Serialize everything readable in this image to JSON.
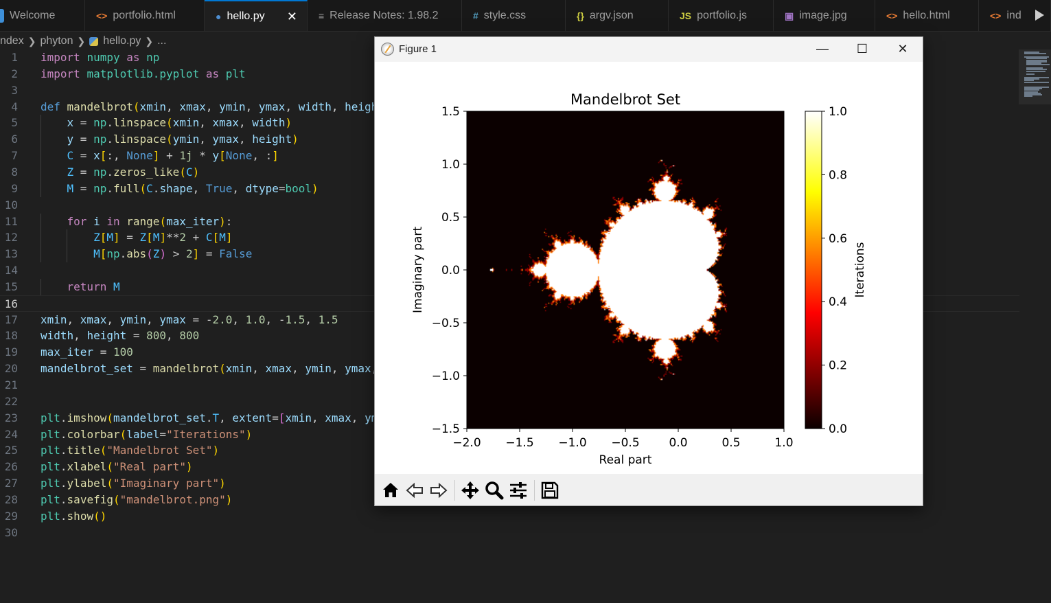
{
  "tabs": [
    {
      "label": "Welcome",
      "icon": "vscode-icon",
      "icon_color": "#3e8fd8",
      "active": false
    },
    {
      "label": "portfolio.html",
      "icon": "html-icon",
      "icon_color": "#e37933",
      "active": false
    },
    {
      "label": "hello.py",
      "icon": "python-icon",
      "icon_color": "#4e8ed1",
      "active": true
    },
    {
      "label": "Release Notes: 1.98.2",
      "icon": "document-icon",
      "icon_color": "#9d9d9d",
      "active": false
    },
    {
      "label": "style.css",
      "icon": "css-icon",
      "icon_color": "#519aba",
      "active": false
    },
    {
      "label": "argv.json",
      "icon": "json-icon",
      "icon_color": "#cbcb41",
      "active": false
    },
    {
      "label": "portfolio.js",
      "icon": "js-icon",
      "icon_color": "#cbcb41",
      "active": false
    },
    {
      "label": "image.jpg",
      "icon": "image-icon",
      "icon_color": "#a074c4",
      "active": false
    },
    {
      "label": "hello.html",
      "icon": "html-icon",
      "icon_color": "#e37933",
      "active": false
    },
    {
      "label": "ind",
      "icon": "html-icon",
      "icon_color": "#e37933",
      "active": false
    }
  ],
  "tab_glyphs": {
    "html": "<>",
    "py": "●",
    "doc": "≡",
    "css": "#",
    "json": "{}",
    "js": "JS",
    "img": "▣"
  },
  "breadcrumb": {
    "root": "ndex",
    "folder": "phyton",
    "file": "hello.py",
    "ellipsis": "..."
  },
  "editor": {
    "current_line": 16,
    "line_numbers": [
      "1",
      "2",
      "3",
      "4",
      "5",
      "6",
      "7",
      "8",
      "9",
      "10",
      "11",
      "12",
      "13",
      "14",
      "15",
      "16",
      "17",
      "18",
      "19",
      "20",
      "21",
      "22",
      "23",
      "24",
      "25",
      "26",
      "27",
      "28",
      "29",
      "30"
    ],
    "lines": [
      [
        [
          "k",
          "import"
        ],
        [
          "p",
          " "
        ],
        [
          "t",
          "numpy"
        ],
        [
          "p",
          " "
        ],
        [
          "k",
          "as"
        ],
        [
          "p",
          " "
        ],
        [
          "t",
          "np"
        ]
      ],
      [
        [
          "k",
          "import"
        ],
        [
          "p",
          " "
        ],
        [
          "t",
          "matplotlib.pyplot"
        ],
        [
          "p",
          " "
        ],
        [
          "k",
          "as"
        ],
        [
          "p",
          " "
        ],
        [
          "t",
          "plt"
        ]
      ],
      [],
      [
        [
          "d",
          "def"
        ],
        [
          "p",
          " "
        ],
        [
          "f",
          "mandelbrot"
        ],
        [
          "b1",
          "("
        ],
        [
          "v",
          "xmin"
        ],
        [
          "p",
          ", "
        ],
        [
          "v",
          "xmax"
        ],
        [
          "p",
          ", "
        ],
        [
          "v",
          "ymin"
        ],
        [
          "p",
          ", "
        ],
        [
          "v",
          "ymax"
        ],
        [
          "p",
          ", "
        ],
        [
          "v",
          "width"
        ],
        [
          "p",
          ", "
        ],
        [
          "v",
          "heigh"
        ]
      ],
      [
        [
          "p",
          "    "
        ],
        [
          "v",
          "x"
        ],
        [
          "p",
          " = "
        ],
        [
          "t",
          "np"
        ],
        [
          "p",
          "."
        ],
        [
          "f",
          "linspace"
        ],
        [
          "b1",
          "("
        ],
        [
          "v",
          "xmin"
        ],
        [
          "p",
          ", "
        ],
        [
          "v",
          "xmax"
        ],
        [
          "p",
          ", "
        ],
        [
          "v",
          "width"
        ],
        [
          "b1",
          ")"
        ]
      ],
      [
        [
          "p",
          "    "
        ],
        [
          "v",
          "y"
        ],
        [
          "p",
          " = "
        ],
        [
          "t",
          "np"
        ],
        [
          "p",
          "."
        ],
        [
          "f",
          "linspace"
        ],
        [
          "b1",
          "("
        ],
        [
          "v",
          "ymin"
        ],
        [
          "p",
          ", "
        ],
        [
          "v",
          "ymax"
        ],
        [
          "p",
          ", "
        ],
        [
          "v",
          "height"
        ],
        [
          "b1",
          ")"
        ]
      ],
      [
        [
          "p",
          "    "
        ],
        [
          "c",
          "C"
        ],
        [
          "p",
          " = "
        ],
        [
          "v",
          "x"
        ],
        [
          "b1",
          "["
        ],
        [
          "p",
          ":, "
        ],
        [
          "d",
          "None"
        ],
        [
          "b1",
          "]"
        ],
        [
          "p",
          " + "
        ],
        [
          "n",
          "1j"
        ],
        [
          "p",
          " * "
        ],
        [
          "v",
          "y"
        ],
        [
          "b1",
          "["
        ],
        [
          "d",
          "None"
        ],
        [
          "p",
          ", :"
        ],
        [
          "b1",
          "]"
        ]
      ],
      [
        [
          "p",
          "    "
        ],
        [
          "c",
          "Z"
        ],
        [
          "p",
          " = "
        ],
        [
          "t",
          "np"
        ],
        [
          "p",
          "."
        ],
        [
          "f",
          "zeros_like"
        ],
        [
          "b1",
          "("
        ],
        [
          "c",
          "C"
        ],
        [
          "b1",
          ")"
        ]
      ],
      [
        [
          "p",
          "    "
        ],
        [
          "c",
          "M"
        ],
        [
          "p",
          " = "
        ],
        [
          "t",
          "np"
        ],
        [
          "p",
          "."
        ],
        [
          "f",
          "full"
        ],
        [
          "b1",
          "("
        ],
        [
          "c",
          "C"
        ],
        [
          "p",
          "."
        ],
        [
          "v",
          "shape"
        ],
        [
          "p",
          ", "
        ],
        [
          "d",
          "True"
        ],
        [
          "p",
          ", "
        ],
        [
          "v",
          "dtype"
        ],
        [
          "p",
          "="
        ],
        [
          "t",
          "bool"
        ],
        [
          "b1",
          ")"
        ]
      ],
      [],
      [
        [
          "p",
          "    "
        ],
        [
          "k",
          "for"
        ],
        [
          "p",
          " "
        ],
        [
          "v",
          "i"
        ],
        [
          "p",
          " "
        ],
        [
          "k",
          "in"
        ],
        [
          "p",
          " "
        ],
        [
          "f",
          "range"
        ],
        [
          "b1",
          "("
        ],
        [
          "v",
          "max_iter"
        ],
        [
          "b1",
          ")"
        ],
        [
          "p",
          ":"
        ]
      ],
      [
        [
          "p",
          "        "
        ],
        [
          "c",
          "Z"
        ],
        [
          "b1",
          "["
        ],
        [
          "c",
          "M"
        ],
        [
          "b1",
          "]"
        ],
        [
          "p",
          " = "
        ],
        [
          "c",
          "Z"
        ],
        [
          "b1",
          "["
        ],
        [
          "c",
          "M"
        ],
        [
          "b1",
          "]"
        ],
        [
          "p",
          "**"
        ],
        [
          "n",
          "2"
        ],
        [
          "p",
          " + "
        ],
        [
          "c",
          "C"
        ],
        [
          "b1",
          "["
        ],
        [
          "c",
          "M"
        ],
        [
          "b1",
          "]"
        ]
      ],
      [
        [
          "p",
          "        "
        ],
        [
          "c",
          "M"
        ],
        [
          "b1",
          "["
        ],
        [
          "t",
          "np"
        ],
        [
          "p",
          "."
        ],
        [
          "f",
          "abs"
        ],
        [
          "b2",
          "("
        ],
        [
          "c",
          "Z"
        ],
        [
          "b2",
          ")"
        ],
        [
          "p",
          " > "
        ],
        [
          "n",
          "2"
        ],
        [
          "b1",
          "]"
        ],
        [
          "p",
          " = "
        ],
        [
          "d",
          "False"
        ]
      ],
      [],
      [
        [
          "p",
          "    "
        ],
        [
          "k",
          "return"
        ],
        [
          "p",
          " "
        ],
        [
          "c",
          "M"
        ]
      ],
      [],
      [
        [
          "v",
          "xmin"
        ],
        [
          "p",
          ", "
        ],
        [
          "v",
          "xmax"
        ],
        [
          "p",
          ", "
        ],
        [
          "v",
          "ymin"
        ],
        [
          "p",
          ", "
        ],
        [
          "v",
          "ymax"
        ],
        [
          "p",
          " = "
        ],
        [
          "p",
          "-"
        ],
        [
          "n",
          "2.0"
        ],
        [
          "p",
          ", "
        ],
        [
          "n",
          "1.0"
        ],
        [
          "p",
          ", "
        ],
        [
          "p",
          "-"
        ],
        [
          "n",
          "1.5"
        ],
        [
          "p",
          ", "
        ],
        [
          "n",
          "1.5"
        ]
      ],
      [
        [
          "v",
          "width"
        ],
        [
          "p",
          ", "
        ],
        [
          "v",
          "height"
        ],
        [
          "p",
          " = "
        ],
        [
          "n",
          "800"
        ],
        [
          "p",
          ", "
        ],
        [
          "n",
          "800"
        ]
      ],
      [
        [
          "v",
          "max_iter"
        ],
        [
          "p",
          " = "
        ],
        [
          "n",
          "100"
        ]
      ],
      [
        [
          "v",
          "mandelbrot_set"
        ],
        [
          "p",
          " = "
        ],
        [
          "f",
          "mandelbrot"
        ],
        [
          "b1",
          "("
        ],
        [
          "v",
          "xmin"
        ],
        [
          "p",
          ", "
        ],
        [
          "v",
          "xmax"
        ],
        [
          "p",
          ", "
        ],
        [
          "v",
          "ymin"
        ],
        [
          "p",
          ", "
        ],
        [
          "v",
          "ymax"
        ],
        [
          "p",
          ","
        ]
      ],
      [],
      [],
      [
        [
          "t",
          "plt"
        ],
        [
          "p",
          "."
        ],
        [
          "f",
          "imshow"
        ],
        [
          "b1",
          "("
        ],
        [
          "v",
          "mandelbrot_set"
        ],
        [
          "p",
          "."
        ],
        [
          "c",
          "T"
        ],
        [
          "p",
          ", "
        ],
        [
          "v",
          "extent"
        ],
        [
          "p",
          "="
        ],
        [
          "b2",
          "["
        ],
        [
          "v",
          "xmin"
        ],
        [
          "p",
          ", "
        ],
        [
          "v",
          "xmax"
        ],
        [
          "p",
          ", "
        ],
        [
          "v",
          "ym"
        ]
      ],
      [
        [
          "t",
          "plt"
        ],
        [
          "p",
          "."
        ],
        [
          "f",
          "colorbar"
        ],
        [
          "b1",
          "("
        ],
        [
          "v",
          "label"
        ],
        [
          "p",
          "="
        ],
        [
          "s",
          "\"Iterations\""
        ],
        [
          "b1",
          ")"
        ]
      ],
      [
        [
          "t",
          "plt"
        ],
        [
          "p",
          "."
        ],
        [
          "f",
          "title"
        ],
        [
          "b1",
          "("
        ],
        [
          "s",
          "\"Mandelbrot Set\""
        ],
        [
          "b1",
          ")"
        ]
      ],
      [
        [
          "t",
          "plt"
        ],
        [
          "p",
          "."
        ],
        [
          "f",
          "xlabel"
        ],
        [
          "b1",
          "("
        ],
        [
          "s",
          "\"Real part\""
        ],
        [
          "b1",
          ")"
        ]
      ],
      [
        [
          "t",
          "plt"
        ],
        [
          "p",
          "."
        ],
        [
          "f",
          "ylabel"
        ],
        [
          "b1",
          "("
        ],
        [
          "s",
          "\"Imaginary part\""
        ],
        [
          "b1",
          ")"
        ]
      ],
      [
        [
          "t",
          "plt"
        ],
        [
          "p",
          "."
        ],
        [
          "f",
          "savefig"
        ],
        [
          "b1",
          "("
        ],
        [
          "s",
          "\"mandelbrot.png\""
        ],
        [
          "b1",
          ")"
        ]
      ],
      [
        [
          "t",
          "plt"
        ],
        [
          "p",
          "."
        ],
        [
          "f",
          "show"
        ],
        [
          "b1",
          "()"
        ]
      ],
      []
    ]
  },
  "figure_window": {
    "title": "Figure 1",
    "minimize_glyph": "—",
    "maximize_glyph": "☐",
    "close_glyph": "✕",
    "toolbar_icons": [
      "home-icon",
      "back-arrow-icon",
      "forward-arrow-icon",
      "pan-icon",
      "zoom-icon",
      "configure-subplots-icon",
      "save-icon"
    ]
  },
  "chart_data": {
    "type": "heatmap",
    "title": "Mandelbrot Set",
    "xlabel": "Real part",
    "ylabel": "Imaginary part",
    "xlim": [
      -2.0,
      1.0
    ],
    "ylim": [
      -1.5,
      1.5
    ],
    "x_ticks": [
      -2.0,
      -1.5,
      -1.0,
      -0.5,
      0.0,
      0.5,
      1.0
    ],
    "x_tick_labels": [
      "−2.0",
      "−1.5",
      "−1.0",
      "−0.5",
      "0.0",
      "0.5",
      "1.0"
    ],
    "y_ticks": [
      1.5,
      1.0,
      0.5,
      0.0,
      -0.5,
      -1.0,
      -1.5
    ],
    "y_tick_labels": [
      "1.5",
      "1.0",
      "0.5",
      "0.0",
      "−0.5",
      "−1.0",
      "−1.5"
    ],
    "colormap": "hot",
    "colorbar_label": "Iterations",
    "colorbar_range": [
      0.0,
      1.0
    ],
    "colorbar_ticks": [
      1.0,
      0.8,
      0.6,
      0.4,
      0.2,
      0.0
    ],
    "colorbar_tick_labels": [
      "1.0",
      "0.8",
      "0.6",
      "0.4",
      "0.2",
      "0.0"
    ],
    "resolution": 800,
    "max_iter": 100,
    "values_description": "1 inside the Mandelbrot set (white), 0 outside (black)",
    "colors": {
      "inside": "#ffffff",
      "outside": "#0b0000",
      "edge": "#ff8000"
    }
  }
}
